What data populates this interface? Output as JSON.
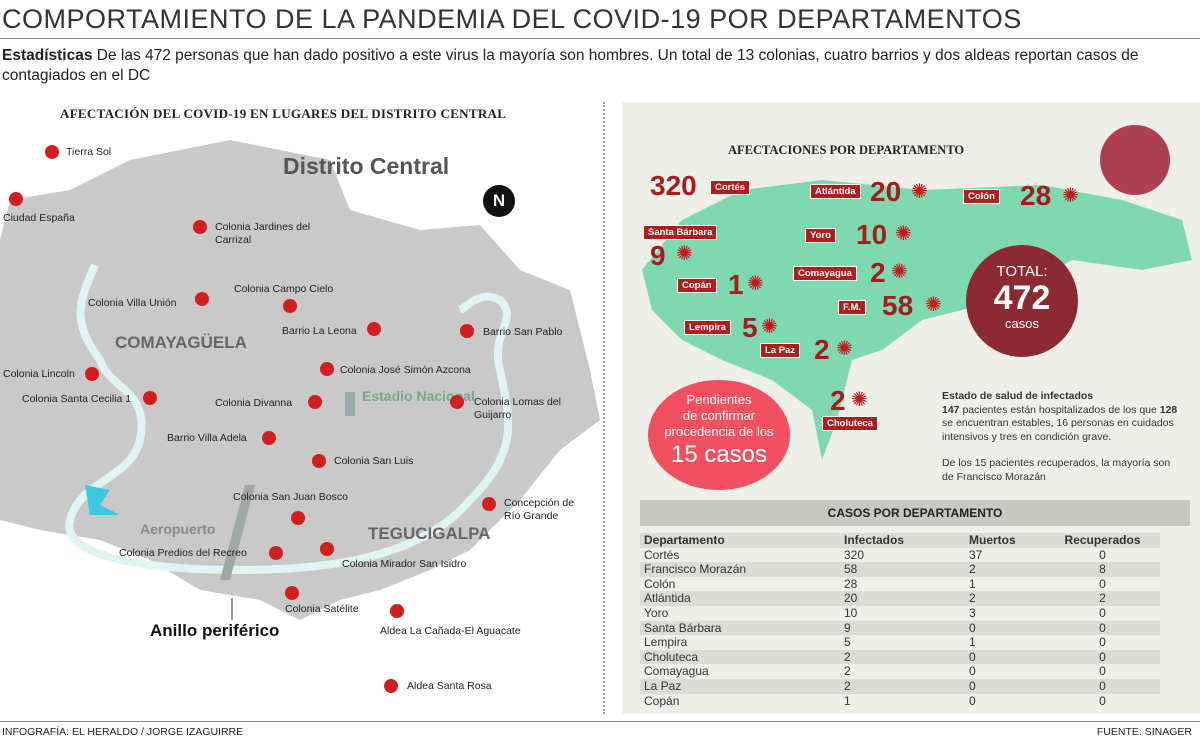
{
  "title": "COMPORTAMIENTO DE LA PANDEMIA DEL COVID-19 POR DEPARTAMENTOS",
  "intro": {
    "lead": "Estadísticas",
    "text": " De las 472 personas que han dado positivo a este virus la mayoría son hombres. Un total de 13 colonias, cuatro barrios y dos aldeas reportan casos de contagiados en el DC"
  },
  "map": {
    "title": "AFECTACIÓN DEL COVID-19 EN LUGARES DEL DISTRITO CENTRAL",
    "region": "Distrito Central",
    "north": "N",
    "areas": [
      "COMAYAGÜELA",
      "TEGUCIGALPA"
    ],
    "landmarks": {
      "stadium": "Estadio Nacional",
      "airport": "Aeropuerto",
      "ring": "Anillo periférico"
    },
    "places": [
      "Tierra Sol",
      "Ciudad España",
      "Colonia Jardines del Carrizal",
      "Colonia Campo Cielo",
      "Colonia Villa Unión",
      "Barrio La Leona",
      "Barrio San Pablo",
      "Colonia Lincoln",
      "Colonia José Simón Azcona",
      "Colonia Santa Cecilia 1",
      "Colonia Divanna",
      "Colonia Lomas del Guijarro",
      "Barrio Villa Adela",
      "Colonia San Luis",
      "Colonia San Juan Bosco",
      "Concepción de Río Grande",
      "Colonia Predios del Recreo",
      "Colonia Mirador San Isidro",
      "Colonia Satélite",
      "Aldea La Cañada-El Aguacate",
      "Aldea Santa Rosa"
    ],
    "marker_color": "#d11e1e"
  },
  "departments": {
    "title": "AFECTACIONES POR DEPARTAMENTO",
    "labels": [
      {
        "name": "Cortés",
        "value": "320"
      },
      {
        "name": "Atlántida",
        "value": "20"
      },
      {
        "name": "Colón",
        "value": "28"
      },
      {
        "name": "Santa Bárbara",
        "value": "9"
      },
      {
        "name": "Yoro",
        "value": "10"
      },
      {
        "name": "Copán",
        "value": "1"
      },
      {
        "name": "Comayagua",
        "value": "2"
      },
      {
        "name": "F.M.",
        "value": "58"
      },
      {
        "name": "Lempira",
        "value": "5"
      },
      {
        "name": "La Paz",
        "value": "2"
      },
      {
        "name": "Choluteca",
        "value": "2"
      }
    ],
    "total_label": "TOTAL:",
    "total": "472",
    "total_unit": "casos",
    "pending": {
      "line1": "Pendientes",
      "line2": "de confirmar",
      "line3": "procedencia de  los",
      "line4": "15 casos"
    },
    "health": {
      "title": "Estado de salud de infectados",
      "n1": "147",
      "t1": " pacientes están hospitalizados de los que ",
      "n2": "128",
      "t2": " se encuentran estables, 16 personas en cuidados intensivos y tres en condición grave.",
      "recovered": "De los 15 pacientes recuperados, la mayoría son de Francisco Morazán"
    },
    "map_color": "#7fd9b0",
    "accent": "#a51c1c",
    "pending_color": "#f05060"
  },
  "table": {
    "title": "CASOS POR DEPARTAMENTO",
    "headers": [
      "Departamento",
      "Infectados",
      "Muertos",
      "Recuperados"
    ],
    "rows": [
      [
        "Cortés",
        "320",
        "37",
        "0"
      ],
      [
        "Francisco Morazán",
        "58",
        "2",
        "8"
      ],
      [
        "Colón",
        "28",
        "1",
        "0"
      ],
      [
        "Atlántida",
        "20",
        "2",
        "2"
      ],
      [
        "Yoro",
        "10",
        "3",
        "0"
      ],
      [
        "Santa Bárbara",
        "9",
        "0",
        "0"
      ],
      [
        "Lempira",
        "5",
        "1",
        "0"
      ],
      [
        "Choluteca",
        "2",
        "0",
        "0"
      ],
      [
        "Comayagua",
        "2",
        "0",
        "0"
      ],
      [
        "La Paz",
        "2",
        "0",
        "0"
      ],
      [
        "Copán",
        "1",
        "0",
        "0"
      ]
    ]
  },
  "footer": {
    "credit": "INFOGRAFÍA: EL HERALDO / JORGE IZAGUIRRE",
    "source": "FUENTE: SINAGER"
  }
}
